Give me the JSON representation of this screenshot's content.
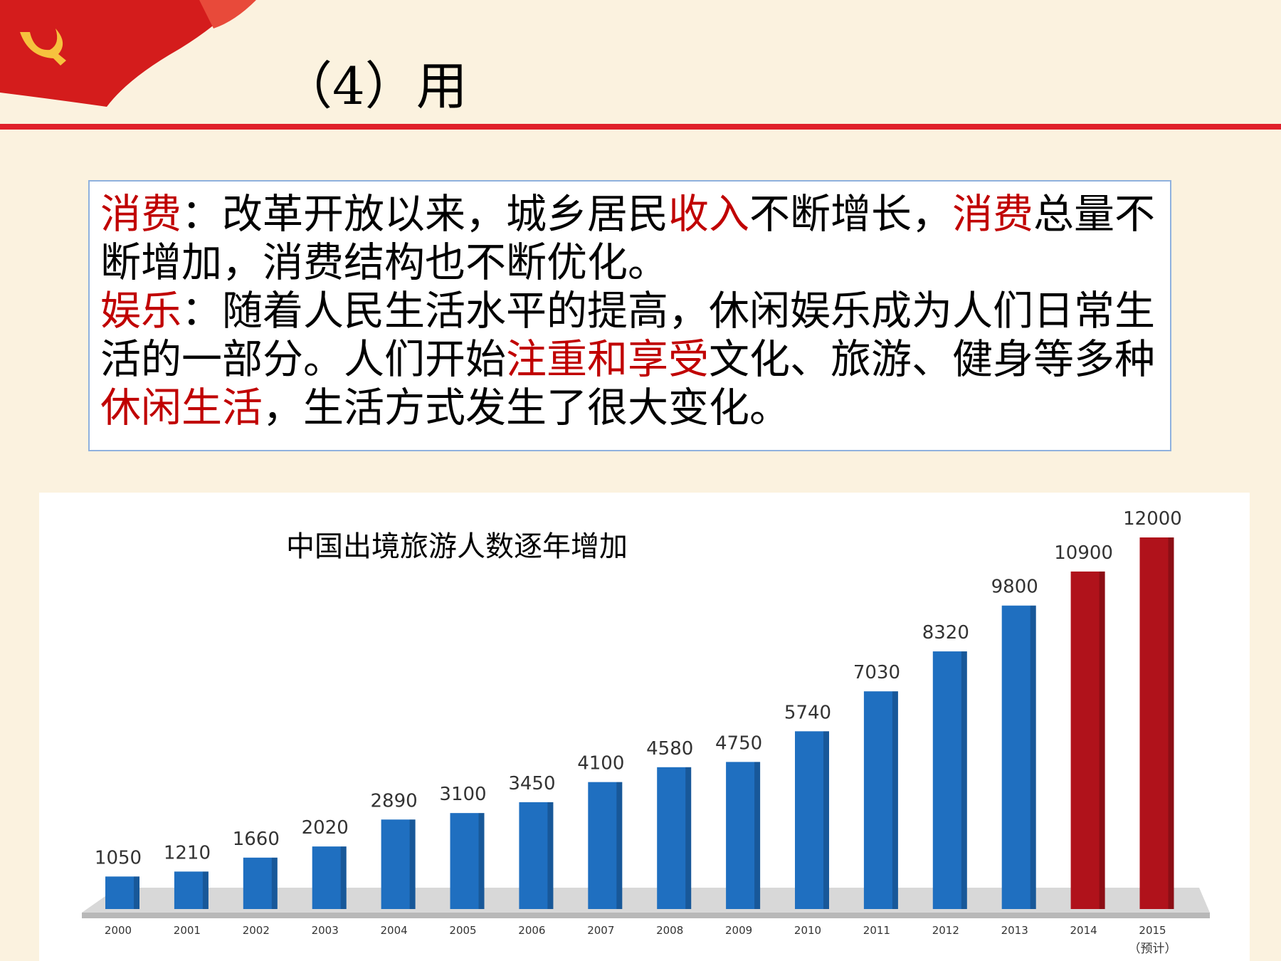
{
  "header": {
    "title": "（4）用"
  },
  "text_box": {
    "paragraphs": [
      [
        {
          "text": "消费",
          "color": "#c00000"
        },
        {
          "text": "：改革开放以来，城乡居民",
          "color": "#000000"
        },
        {
          "text": "收入",
          "color": "#c00000"
        },
        {
          "text": "不断增长，",
          "color": "#000000"
        },
        {
          "text": "消费",
          "color": "#c00000"
        },
        {
          "text": "总量不断增加，消费结构也不断优化。",
          "color": "#000000"
        }
      ],
      [
        {
          "text": "娱乐",
          "color": "#c00000"
        },
        {
          "text": "：随着人民生活水平的提高，休闲娱乐成为人们日常生活的一部分。人们开始",
          "color": "#000000"
        },
        {
          "text": "注重和享受",
          "color": "#c00000"
        },
        {
          "text": "文化、旅游、健身等多种",
          "color": "#000000"
        },
        {
          "text": "休闲生活",
          "color": "#c00000"
        },
        {
          "text": "，生活方式发生了很大变化。",
          "color": "#000000"
        }
      ]
    ]
  },
  "chart_data": {
    "type": "bar",
    "title": "中国出境旅游人数逐年增加",
    "categories": [
      "2000",
      "2001",
      "2002",
      "2003",
      "2004",
      "2005",
      "2006",
      "2007",
      "2008",
      "2009",
      "2010",
      "2011",
      "2012",
      "2013",
      "2014",
      "2015"
    ],
    "values": [
      1050,
      1210,
      1660,
      2020,
      2890,
      3100,
      3450,
      4100,
      4580,
      4750,
      5740,
      7030,
      8320,
      9800,
      10900,
      12000
    ],
    "colors": [
      "#1f6fc0",
      "#1f6fc0",
      "#1f6fc0",
      "#1f6fc0",
      "#1f6fc0",
      "#1f6fc0",
      "#1f6fc0",
      "#1f6fc0",
      "#1f6fc0",
      "#1f6fc0",
      "#1f6fc0",
      "#1f6fc0",
      "#1f6fc0",
      "#1f6fc0",
      "#b0121b",
      "#b0121b"
    ],
    "annotation": "（预计）"
  }
}
